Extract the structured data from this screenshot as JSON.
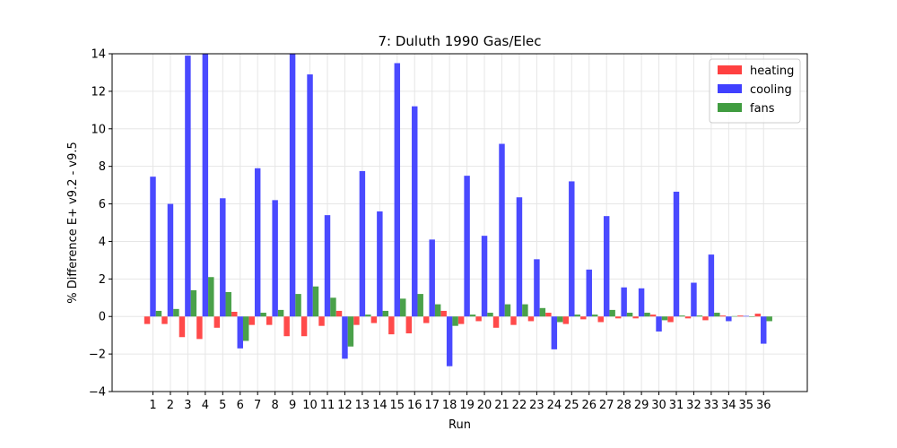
{
  "chart_data": {
    "type": "bar",
    "title": "7: Duluth 1990 Gas/Elec",
    "xlabel": "Run",
    "ylabel": "% Difference E+ v9.2 - v9.5",
    "ylim": [
      -4,
      14
    ],
    "yticks": [
      -4,
      -2,
      0,
      2,
      4,
      6,
      8,
      10,
      12,
      14
    ],
    "grid": true,
    "legend_position": "top-right",
    "categories": [
      "1",
      "2",
      "3",
      "4",
      "5",
      "6",
      "7",
      "8",
      "9",
      "10",
      "11",
      "12",
      "13",
      "14",
      "15",
      "16",
      "17",
      "18",
      "19",
      "20",
      "21",
      "22",
      "23",
      "24",
      "25",
      "26",
      "27",
      "28",
      "29",
      "30",
      "31",
      "32",
      "33",
      "34",
      "35",
      "36"
    ],
    "series": [
      {
        "name": "heating",
        "color": "#ff4040",
        "values": [
          -0.4,
          -0.4,
          -1.1,
          -1.2,
          -0.6,
          0.25,
          -0.45,
          -0.45,
          -1.05,
          -1.05,
          -0.5,
          0.3,
          -0.45,
          -0.35,
          -0.95,
          -0.9,
          -0.35,
          0.3,
          -0.4,
          -0.25,
          -0.6,
          -0.45,
          -0.25,
          0.2,
          -0.4,
          -0.15,
          -0.3,
          -0.1,
          -0.1,
          0.1,
          -0.3,
          -0.1,
          -0.2,
          0.05,
          0.05,
          0.15
        ]
      },
      {
        "name": "cooling",
        "color": "#4040ff",
        "values": [
          7.45,
          6.0,
          13.9,
          14.0,
          6.3,
          -1.7,
          7.9,
          6.2,
          14.0,
          12.9,
          5.4,
          -2.25,
          7.75,
          5.6,
          13.5,
          11.2,
          4.1,
          -2.65,
          7.5,
          4.3,
          9.2,
          6.35,
          3.05,
          -1.75,
          7.2,
          2.5,
          5.35,
          1.55,
          1.5,
          -0.8,
          6.65,
          1.8,
          3.3,
          -0.25,
          0.03,
          -1.45
        ]
      },
      {
        "name": "fans",
        "color": "#409c40",
        "values": [
          0.3,
          0.4,
          1.4,
          2.1,
          1.3,
          -1.3,
          0.2,
          0.35,
          1.2,
          1.6,
          1.0,
          -1.6,
          0.1,
          0.3,
          0.95,
          1.2,
          0.65,
          -0.5,
          0.1,
          0.2,
          0.65,
          0.65,
          0.45,
          -0.3,
          0.1,
          0.1,
          0.35,
          0.2,
          0.2,
          -0.2,
          0.05,
          0.05,
          0.2,
          0.02,
          -0.02,
          -0.25
        ]
      }
    ]
  }
}
